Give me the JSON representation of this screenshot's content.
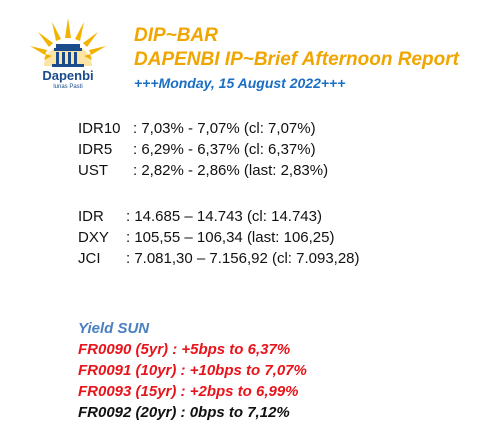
{
  "logo": {
    "brand": "Dapenbi",
    "tagline": "lunas Pasti",
    "colors": {
      "sun": "#f2b200",
      "building": "#1a4b8c"
    }
  },
  "header": {
    "line1": "DIP~BAR",
    "line2": "DAPENBI IP~Brief Afternoon Report",
    "line3": "+++Monday, 15 August 2022+++"
  },
  "bonds": [
    {
      "label": "IDR10",
      "value": ": 7,03% - 7,07% (cl: 7,07%)"
    },
    {
      "label": "IDR5",
      "value": ": 6,29% - 6,37% (cl: 6,37%)"
    },
    {
      "label": "UST",
      "value": ": 2,82% - 2,86% (last: 2,83%)"
    }
  ],
  "markets": [
    {
      "label": "IDR",
      "value": ": 14.685 – 14.743 (cl: 14.743)"
    },
    {
      "label": "DXY",
      "value": ": 105,55 – 106,34 (last: 106,25)"
    },
    {
      "label": "JCI",
      "value": ": 7.081,30 – 7.156,92 (cl: 7.093,28)"
    }
  ],
  "yield_sun": {
    "title": "Yield SUN",
    "rows": [
      {
        "text": "FR0090 (5yr)   : +5bps to 6,37%",
        "color": "#e8141b"
      },
      {
        "text": "FR0091 (10yr) : +10bps to 7,07%",
        "color": "#e8141b"
      },
      {
        "text": "FR0093 (15yr) : +2bps to 6,99%",
        "color": "#e8141b"
      },
      {
        "text": "FR0092 (20yr) : 0bps to 7,12%",
        "color": "#111111"
      }
    ]
  }
}
